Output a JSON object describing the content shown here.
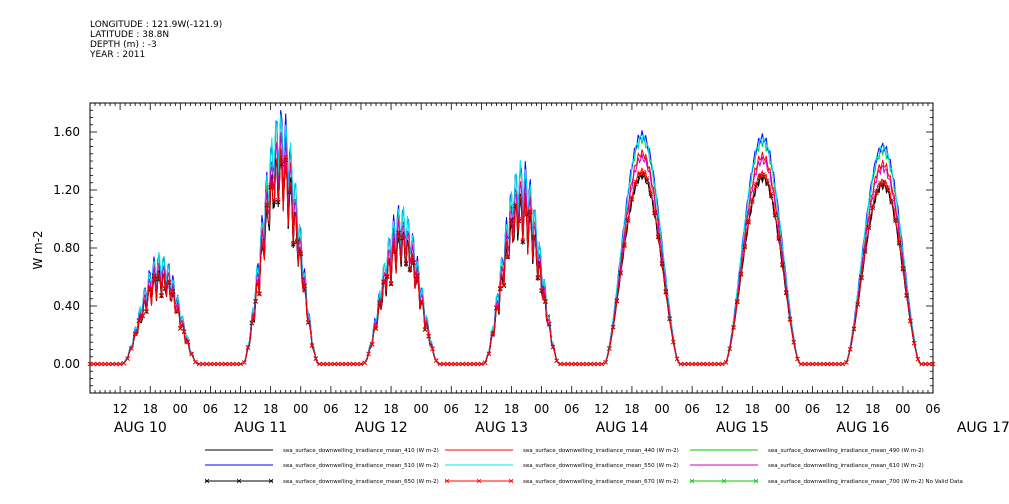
{
  "header": {
    "longitude": "LONGITUDE : 121.9W(-121.9)",
    "latitude": "LATITUDE : 38.8N",
    "depth": "DEPTH (m) : -3",
    "year": "YEAR : 2011"
  },
  "chart_data": {
    "type": "line",
    "title": "",
    "xlabel": "",
    "ylabel": "W m-2",
    "ylim": [
      -0.2,
      1.8
    ],
    "y_ticks": [
      "0.00",
      "0.40",
      "0.80",
      "1.20",
      "1.60"
    ],
    "y_tick_values": [
      0,
      0.4,
      0.8,
      1.2,
      1.6
    ],
    "x_range_hours": [
      6,
      174
    ],
    "x_hour_tick_labels": [
      "12",
      "18",
      "00",
      "06",
      "12",
      "18",
      "00",
      "06",
      "12",
      "18",
      "00",
      "06",
      "12",
      "18",
      "00",
      "06",
      "12",
      "18",
      "00",
      "06",
      "12",
      "18",
      "00",
      "06",
      "12",
      "18",
      "00",
      "06"
    ],
    "date_labels": [
      "AUG 10",
      "AUG 11",
      "AUG 12",
      "AUG 13",
      "AUG 14",
      "AUG 15",
      "AUG 16",
      "AUG 17"
    ],
    "days": [
      {
        "day": "AUG 10",
        "peak": 0.7
      },
      {
        "day": "AUG 11",
        "peak": 1.6
      },
      {
        "day": "AUG 12",
        "peak": 1.0
      },
      {
        "day": "AUG 13",
        "peak": 1.28
      },
      {
        "day": "AUG 14",
        "peak": 1.58
      },
      {
        "day": "AUG 15",
        "peak": 1.56
      },
      {
        "day": "AUG 16",
        "peak": 1.5
      }
    ],
    "series": [
      {
        "name": "sea_surface_downwelling_irradiance_mean_410 (W m-2)",
        "color": "#000000",
        "scale": 0.82,
        "marker": "none"
      },
      {
        "name": "sea_surface_downwelling_irradiance_mean_440 (W m-2)",
        "color": "#ff0000",
        "scale": 0.92,
        "marker": "none"
      },
      {
        "name": "sea_surface_downwelling_irradiance_mean_490 (W m-2)",
        "color": "#00cc00",
        "scale": 0.98,
        "marker": "none"
      },
      {
        "name": "sea_surface_downwelling_irradiance_mean_510 (W m-2)",
        "color": "#0000ff",
        "scale": 1.0,
        "marker": "none"
      },
      {
        "name": "sea_surface_downwelling_irradiance_mean_550 (W m-2)",
        "color": "#00e5ee",
        "scale": 0.99,
        "marker": "none"
      },
      {
        "name": "sea_surface_downwelling_irradiance_mean_610 (W m-2)",
        "color": "#cc00cc",
        "scale": 0.9,
        "marker": "none"
      },
      {
        "name": "sea_surface_downwelling_irradiance_mean_650 (W m-2)",
        "color": "#000000",
        "scale": 0.83,
        "marker": "x"
      },
      {
        "name": "sea_surface_downwelling_irradiance_mean_670 (W m-2)",
        "color": "#ff0000",
        "scale": 0.84,
        "marker": "x"
      },
      {
        "name": "sea_surface_downwelling_irradiance_mean_700 (W m-2) No Valid Data",
        "color": "#00cc00",
        "scale": 0,
        "marker": "x"
      }
    ]
  }
}
